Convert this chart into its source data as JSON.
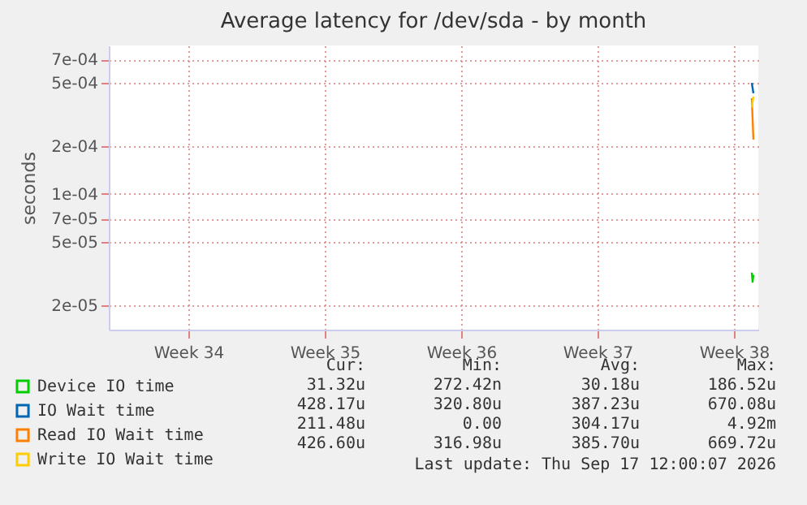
{
  "chart_data": {
    "type": "line",
    "title": "Average latency for /dev/sda - by month",
    "ylabel": "seconds",
    "log": "y",
    "grid": true,
    "legend": "bottom",
    "xlim": [
      "2026-08-15T10:00",
      "2026-09-17T18:00"
    ],
    "xticks": [
      {
        "value": "2026-08-19T12:00",
        "label": "Week 34"
      },
      {
        "value": "2026-08-26T12:00",
        "label": "Week 35"
      },
      {
        "value": "2026-09-02T12:00",
        "label": "Week 36"
      },
      {
        "value": "2026-09-09T12:00",
        "label": "Week 37"
      },
      {
        "value": "2026-09-16T12:00",
        "label": "Week 38"
      }
    ],
    "ylim": [
      1.4e-05,
      0.00086
    ],
    "yticks": [
      {
        "value": 2e-05,
        "label": "2e-05"
      },
      {
        "value": 5e-05,
        "label": "5e-05"
      },
      {
        "value": 7e-05,
        "label": "7e-05"
      },
      {
        "value": 0.0001,
        "label": "1e-04"
      },
      {
        "value": 0.0002,
        "label": "2e-04"
      },
      {
        "value": 0.0005,
        "label": "5e-04"
      },
      {
        "value": 0.0007,
        "label": "7e-04"
      }
    ],
    "series": [
      {
        "name": "Device IO time",
        "color": "#00cc00",
        "x": [
          "2026-09-17T10:00",
          "2026-09-17T11:00",
          "2026-09-17T12:00"
        ],
        "values": [
          3.2e-05,
          2.8e-05,
          3.1e-05
        ]
      },
      {
        "name": "IO Wait time",
        "color": "#0066b3",
        "x": [
          "2026-09-17T10:00",
          "2026-09-17T12:00"
        ],
        "values": [
          0.0005,
          0.00043
        ]
      },
      {
        "name": "Read IO Wait time",
        "color": "#ff8000",
        "x": [
          "2026-09-17T10:00",
          "2026-09-17T12:00"
        ],
        "values": [
          0.0004,
          0.00022
        ]
      },
      {
        "name": "Write IO Wait time",
        "color": "#ffcc00",
        "x": [
          "2026-09-17T10:00",
          "2026-09-17T12:00"
        ],
        "values": [
          0.00035,
          0.00041
        ]
      }
    ],
    "annotations": [
      "Cur:",
      "Min:",
      "Avg:",
      "Max:",
      "31.32u",
      "272.42n",
      "30.18u",
      "186.52u",
      "428.17u",
      "320.80u",
      "387.23u",
      "670.08u",
      "211.48u",
      "0.00",
      "304.17u",
      "4.92m",
      "426.60u",
      "316.98u",
      "385.70u",
      "669.72u",
      "Last update: Thu Sep 17 12:00:07 2026"
    ]
  }
}
